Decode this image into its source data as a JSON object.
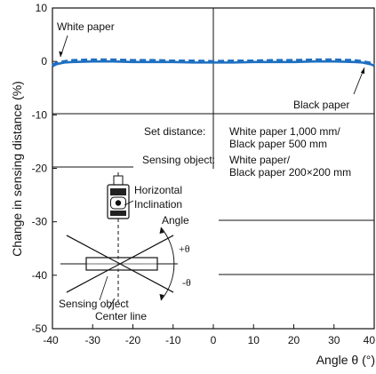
{
  "chart_data": {
    "type": "line",
    "title": "",
    "xlabel": "Angle θ (°)",
    "ylabel": "Change in sensing distance (%)",
    "xlim": [
      -40,
      40
    ],
    "ylim": [
      -50,
      10
    ],
    "x_ticks": [
      -40,
      -30,
      -20,
      -10,
      0,
      10,
      20,
      30,
      40
    ],
    "y_ticks": [
      10,
      0,
      -10,
      -20,
      -30,
      -40,
      -50
    ],
    "x_tick_labels": [
      "-40",
      "-30",
      "-20",
      "-10",
      "0",
      "10",
      "20",
      "30",
      "40"
    ],
    "y_tick_labels": [
      "10",
      "0",
      "-10",
      "-20",
      "-30",
      "-40",
      "-50"
    ],
    "grid": false,
    "series": [
      {
        "name": "White paper",
        "style": "dashed",
        "color": "#1f6fc0",
        "x": [
          -40,
          -39,
          -37,
          -35,
          -30,
          -25,
          -20,
          -15,
          -10,
          -5,
          0,
          5,
          10,
          15,
          20,
          25,
          30,
          35,
          37,
          39,
          40
        ],
        "y": [
          -0.7,
          -0.3,
          0.0,
          0.2,
          0.3,
          0.3,
          0.2,
          0.2,
          0.1,
          0.1,
          0.0,
          0.1,
          0.1,
          0.2,
          0.2,
          0.3,
          0.3,
          0.2,
          0.0,
          -0.3,
          -0.6
        ]
      },
      {
        "name": "Black paper",
        "style": "solid",
        "color": "#1f6fc0",
        "x": [
          -40,
          -39,
          -37,
          -35,
          -30,
          -25,
          -20,
          -15,
          -10,
          -5,
          0,
          5,
          10,
          15,
          20,
          25,
          30,
          35,
          37,
          39,
          40
        ],
        "y": [
          -0.9,
          -0.5,
          -0.2,
          -0.1,
          0.0,
          0.0,
          -0.1,
          -0.1,
          -0.1,
          -0.2,
          -0.2,
          -0.2,
          -0.1,
          -0.1,
          -0.1,
          0.0,
          0.0,
          -0.1,
          -0.2,
          -0.5,
          -0.8
        ]
      }
    ],
    "conditions": {
      "set_distance_label": "Set distance:",
      "set_distance_line1": "White paper 1,000 mm/",
      "set_distance_line2": "Black paper  500 mm",
      "sensing_object_label": "Sensing object:",
      "sensing_object_line1": "White paper/",
      "sensing_object_line2": "Black paper 200×200 mm"
    },
    "inset": {
      "horizontal_label": "Horizontal",
      "inclination_label": "Inclination",
      "angle_label": "Angle",
      "plus_theta": "+θ",
      "minus_theta": "-θ",
      "sensing_object_label": "Sensing object",
      "center_line_label": "Center line"
    }
  }
}
